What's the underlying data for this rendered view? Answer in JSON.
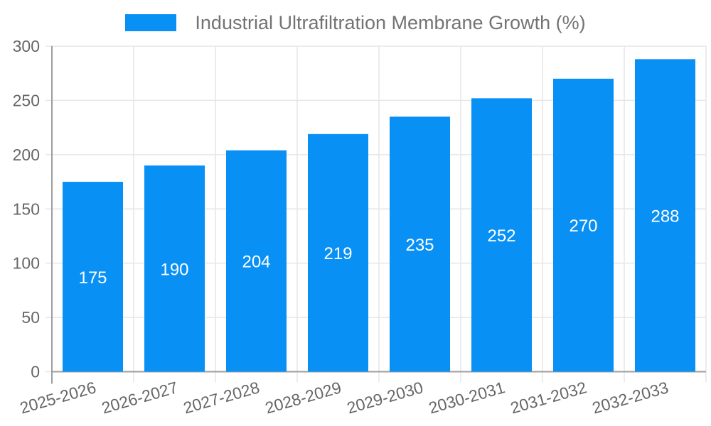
{
  "legend": {
    "label": "Industrial Ultrafiltration Membrane Growth (%)",
    "swatch_color": "#0990F5"
  },
  "chart_data": {
    "type": "bar",
    "title": "Industrial Ultrafiltration Membrane Growth (%)",
    "categories": [
      "2025-2026",
      "2026-2027",
      "2027-2028",
      "2028-2029",
      "2029-2030",
      "2030-2031",
      "2031-2032",
      "2032-2033"
    ],
    "values": [
      175,
      190,
      204,
      219,
      235,
      252,
      270,
      288
    ],
    "xlabel": "",
    "ylabel": "",
    "ylim": [
      0,
      300
    ],
    "yticks": [
      0,
      50,
      100,
      150,
      200,
      250,
      300
    ],
    "grid": true,
    "legend_position": "top-center",
    "bar_color": "#0990F5",
    "value_label_color": "#FFFFFF"
  },
  "colors": {
    "background": "#FFFFFF",
    "grid": "#E6E6E6",
    "axis": "#9E9E9E",
    "tick_label": "#666666",
    "legend_text": "#737373"
  }
}
